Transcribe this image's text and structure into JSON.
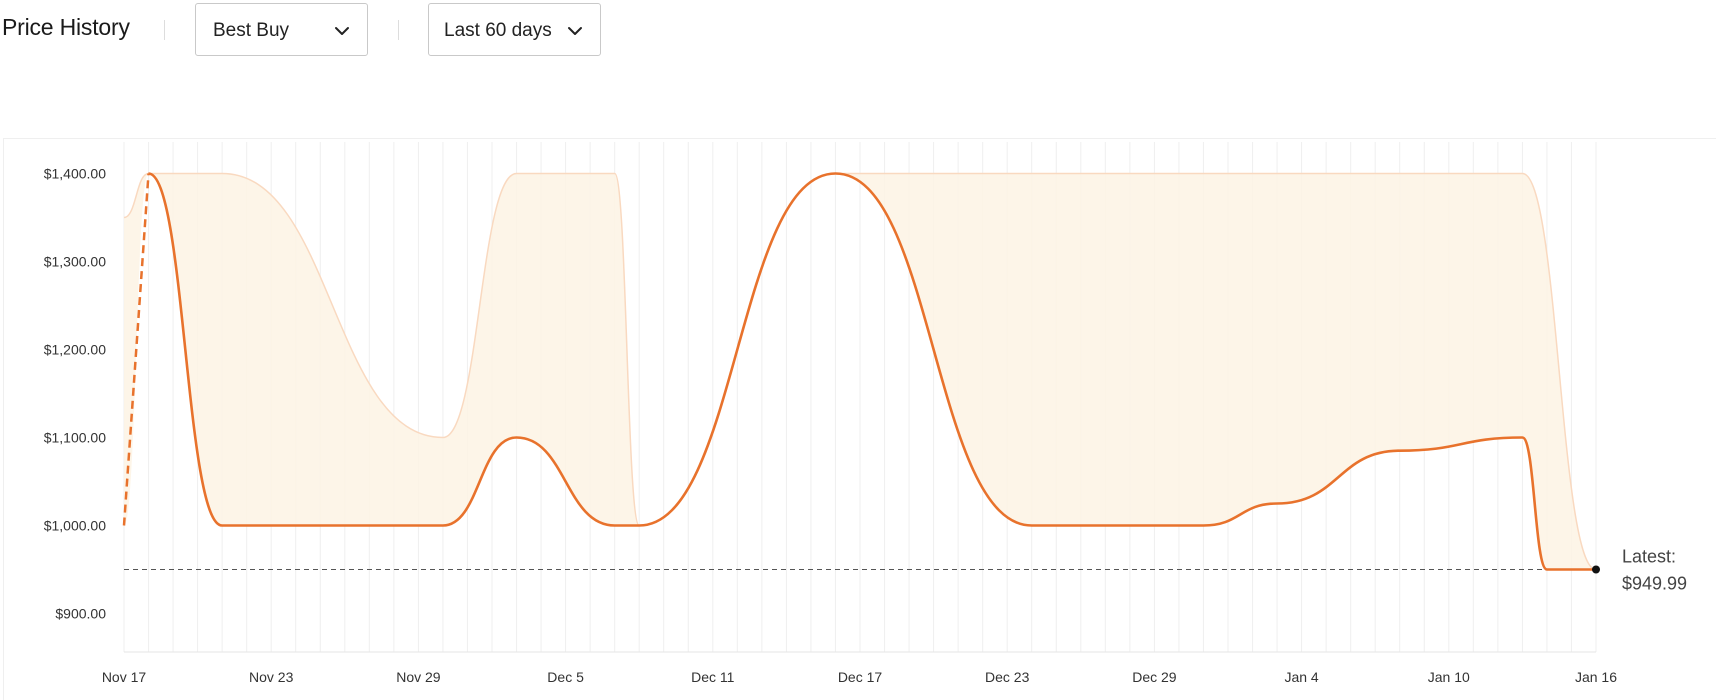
{
  "header": {
    "title": "Price History",
    "retailer_select": {
      "value": "Best Buy"
    },
    "range_select": {
      "value": "Last 60 days"
    }
  },
  "colors": {
    "line": "#e8722c",
    "band_fill": "#fdf3e4",
    "band_edge": "#f9d9c0",
    "grid": "#efefef",
    "reference": "#555555"
  },
  "chart_data": {
    "type": "line",
    "title": "",
    "xlabel": "",
    "ylabel": "",
    "x_range": [
      "2023-11-17",
      "2024-01-16"
    ],
    "ylim": [
      860,
      1440
    ],
    "y_ticks": [
      {
        "value": 900,
        "label": "$900.00"
      },
      {
        "value": 1000,
        "label": "$1,000.00"
      },
      {
        "value": 1100,
        "label": "$1,100.00"
      },
      {
        "value": 1200,
        "label": "$1,200.00"
      },
      {
        "value": 1300,
        "label": "$1,300.00"
      },
      {
        "value": 1400,
        "label": "$1,400.00"
      }
    ],
    "x_ticks": [
      {
        "date": "2023-11-17",
        "label": "Nov 17"
      },
      {
        "date": "2023-11-23",
        "label": "Nov 23"
      },
      {
        "date": "2023-11-29",
        "label": "Nov 29"
      },
      {
        "date": "2023-12-05",
        "label": "Dec 5"
      },
      {
        "date": "2023-12-11",
        "label": "Dec 11"
      },
      {
        "date": "2023-12-17",
        "label": "Dec 17"
      },
      {
        "date": "2023-12-23",
        "label": "Dec 23"
      },
      {
        "date": "2023-12-29",
        "label": "Dec 29"
      },
      {
        "date": "2024-01-04",
        "label": "Jan 4"
      },
      {
        "date": "2024-01-10",
        "label": "Jan 10"
      },
      {
        "date": "2024-01-16",
        "label": "Jan 16"
      }
    ],
    "grid": {
      "vertical": "daily",
      "horizontal": false
    },
    "series": [
      {
        "role": "price",
        "dashed_until": "2023-11-18",
        "points": [
          [
            "2023-11-17",
            1000
          ],
          [
            "2023-11-18",
            1400
          ],
          [
            "2023-11-21",
            1000
          ],
          [
            "2023-11-30",
            1000
          ],
          [
            "2023-12-03",
            1100
          ],
          [
            "2023-12-07",
            1000
          ],
          [
            "2023-12-08",
            1000
          ],
          [
            "2023-12-16",
            1400
          ],
          [
            "2023-12-24",
            1000
          ],
          [
            "2023-12-31",
            1000
          ],
          [
            "2024-01-03",
            1025
          ],
          [
            "2024-01-08",
            1085
          ],
          [
            "2024-01-13",
            1100
          ],
          [
            "2024-01-14",
            950
          ],
          [
            "2024-01-16",
            949.99
          ]
        ]
      }
    ],
    "range_band": {
      "high": [
        [
          "2023-11-17",
          1350
        ],
        [
          "2023-11-18",
          1400
        ],
        [
          "2023-11-21",
          1400
        ],
        [
          "2023-11-30",
          1100
        ],
        [
          "2023-12-03",
          1400
        ],
        [
          "2023-12-07",
          1400
        ],
        [
          "2023-12-08",
          1000
        ],
        [
          "2023-12-16",
          1400
        ],
        [
          "2024-01-13",
          1400
        ],
        [
          "2024-01-16",
          949.99
        ]
      ],
      "low": [
        [
          "2023-11-17",
          1000
        ],
        [
          "2023-11-18",
          1400
        ],
        [
          "2023-11-21",
          1000
        ],
        [
          "2023-11-30",
          1000
        ],
        [
          "2023-12-03",
          1100
        ],
        [
          "2023-12-07",
          1000
        ],
        [
          "2023-12-08",
          1000
        ],
        [
          "2023-12-16",
          1400
        ],
        [
          "2023-12-24",
          1000
        ],
        [
          "2023-12-31",
          1000
        ],
        [
          "2024-01-03",
          1025
        ],
        [
          "2024-01-08",
          1085
        ],
        [
          "2024-01-13",
          1100
        ],
        [
          "2024-01-14",
          950
        ],
        [
          "2024-01-16",
          949.99
        ]
      ]
    },
    "reference_line": {
      "value": 949.99,
      "style": "dashed"
    },
    "latest": {
      "label": "Latest:",
      "value_label": "$949.99",
      "value": 949.99,
      "date": "2024-01-16"
    }
  }
}
